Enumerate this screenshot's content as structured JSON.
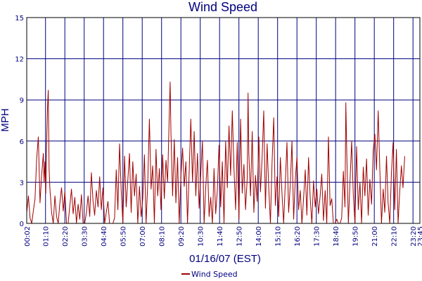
{
  "chart_data": {
    "type": "line",
    "title": "Wind Speed",
    "xlabel": "01/16/07 (EST)",
    "ylabel": "MPH",
    "ylim": [
      0,
      15
    ],
    "y_ticks": [
      "0",
      "3",
      "6",
      "9",
      "12",
      "15"
    ],
    "x_tick_labels": [
      "00:02",
      "01:10",
      "02:20",
      "03:30",
      "04:40",
      "05:50",
      "07:00",
      "08:10",
      "09:20",
      "10:30",
      "11:40",
      "12:50",
      "14:00",
      "15:10",
      "16:20",
      "17:30",
      "18:40",
      "19:50",
      "21:00",
      "22:10",
      "23:20",
      "23:45"
    ],
    "grid": true,
    "legend": "bottom-center",
    "series": [
      {
        "name": "Wind Speed",
        "color": "#a00000",
        "x_start": "00:02",
        "x_end": "23:45",
        "points": [
          [
            0.0,
            0.8
          ],
          [
            0.1,
            2.0
          ],
          [
            0.2,
            0.4
          ],
          [
            0.3,
            0.0
          ],
          [
            0.4,
            0.9
          ],
          [
            0.5,
            1.8
          ],
          [
            0.6,
            4.7
          ],
          [
            0.7,
            6.3
          ],
          [
            0.8,
            1.5
          ],
          [
            0.9,
            3.5
          ],
          [
            1.0,
            5.1
          ],
          [
            1.05,
            3.0
          ],
          [
            1.1,
            4.5
          ],
          [
            1.15,
            2.2
          ],
          [
            1.2,
            5.8
          ],
          [
            1.25,
            8.4
          ],
          [
            1.3,
            9.7
          ],
          [
            1.35,
            4.0
          ],
          [
            1.4,
            2.5
          ],
          [
            1.5,
            0.8
          ],
          [
            1.6,
            0.0
          ],
          [
            1.7,
            2.0
          ],
          [
            1.8,
            0.5
          ],
          [
            1.9,
            0.0
          ],
          [
            2.0,
            1.5
          ],
          [
            2.1,
            2.6
          ],
          [
            2.2,
            0.9
          ],
          [
            2.3,
            2.3
          ],
          [
            2.4,
            0.0
          ],
          [
            2.5,
            0.0
          ],
          [
            2.6,
            1.3
          ],
          [
            2.7,
            2.5
          ],
          [
            2.8,
            0.7
          ],
          [
            2.9,
            1.9
          ],
          [
            3.0,
            0.0
          ],
          [
            3.1,
            1.4
          ],
          [
            3.2,
            0.3
          ],
          [
            3.3,
            2.1
          ],
          [
            3.4,
            0.0
          ],
          [
            3.5,
            0.0
          ],
          [
            3.6,
            0.8
          ],
          [
            3.7,
            2.0
          ],
          [
            3.8,
            0.5
          ],
          [
            3.9,
            3.7
          ],
          [
            4.0,
            1.6
          ],
          [
            4.1,
            0.6
          ],
          [
            4.2,
            2.4
          ],
          [
            4.3,
            1.2
          ],
          [
            4.4,
            3.4
          ],
          [
            4.5,
            1.0
          ],
          [
            4.6,
            2.6
          ],
          [
            4.7,
            0.0
          ],
          [
            4.8,
            0.8
          ],
          [
            4.9,
            1.6
          ],
          [
            5.0,
            0.0
          ],
          [
            5.1,
            0.0
          ],
          [
            5.2,
            0.0
          ],
          [
            5.3,
            0.4
          ],
          [
            5.4,
            3.9
          ],
          [
            5.5,
            1.0
          ],
          [
            5.6,
            5.8
          ],
          [
            5.7,
            2.4
          ],
          [
            5.8,
            0.0
          ],
          [
            5.9,
            4.9
          ],
          [
            6.0,
            1.2
          ],
          [
            6.1,
            3.2
          ],
          [
            6.2,
            5.1
          ],
          [
            6.3,
            0.8
          ],
          [
            6.4,
            4.5
          ],
          [
            6.5,
            2.0
          ],
          [
            6.6,
            3.6
          ],
          [
            6.7,
            0.0
          ],
          [
            6.8,
            2.7
          ],
          [
            6.9,
            0.5
          ],
          [
            7.0,
            1.8
          ],
          [
            7.1,
            5.0
          ],
          [
            7.2,
            0.0
          ],
          [
            7.3,
            3.0
          ],
          [
            7.4,
            7.6
          ],
          [
            7.5,
            2.5
          ],
          [
            7.6,
            4.2
          ],
          [
            7.7,
            0.0
          ],
          [
            7.8,
            5.4
          ],
          [
            7.9,
            2.0
          ],
          [
            8.0,
            4.0
          ],
          [
            8.1,
            1.0
          ],
          [
            8.2,
            5.0
          ],
          [
            8.3,
            1.8
          ],
          [
            8.4,
            4.6
          ],
          [
            8.5,
            3.0
          ],
          [
            8.6,
            8.0
          ],
          [
            8.65,
            10.3
          ],
          [
            8.7,
            6.5
          ],
          [
            8.8,
            2.0
          ],
          [
            8.9,
            6.1
          ],
          [
            9.0,
            1.5
          ],
          [
            9.1,
            4.8
          ],
          [
            9.2,
            0.0
          ],
          [
            9.3,
            3.4
          ],
          [
            9.4,
            5.5
          ],
          [
            9.5,
            2.7
          ],
          [
            9.6,
            4.5
          ],
          [
            9.7,
            0.0
          ],
          [
            9.8,
            3.8
          ],
          [
            9.9,
            7.6
          ],
          [
            10.0,
            3.0
          ],
          [
            10.1,
            6.7
          ],
          [
            10.2,
            2.0
          ],
          [
            10.3,
            5.1
          ],
          [
            10.4,
            1.1
          ],
          [
            10.5,
            3.6
          ],
          [
            10.6,
            6.0
          ],
          [
            10.7,
            0.0
          ],
          [
            10.8,
            2.7
          ],
          [
            10.9,
            4.6
          ],
          [
            11.0,
            0.5
          ],
          [
            11.1,
            1.9
          ],
          [
            11.2,
            0.0
          ],
          [
            11.3,
            4.0
          ],
          [
            11.4,
            0.7
          ],
          [
            11.5,
            2.5
          ],
          [
            11.6,
            5.7
          ],
          [
            11.7,
            1.2
          ],
          [
            11.8,
            4.5
          ],
          [
            11.9,
            0.0
          ],
          [
            12.0,
            6.0
          ],
          [
            12.1,
            2.6
          ],
          [
            12.2,
            7.1
          ],
          [
            12.3,
            3.5
          ],
          [
            12.4,
            8.2
          ],
          [
            12.5,
            4.1
          ],
          [
            12.6,
            1.0
          ],
          [
            12.7,
            5.9
          ],
          [
            12.8,
            0.3
          ],
          [
            12.9,
            7.6
          ],
          [
            13.0,
            2.2
          ],
          [
            13.1,
            4.3
          ],
          [
            13.2,
            1.0
          ],
          [
            13.3,
            3.3
          ],
          [
            13.35,
            9.5
          ],
          [
            13.4,
            5.1
          ],
          [
            13.5,
            2.0
          ],
          [
            13.6,
            6.7
          ],
          [
            13.7,
            0.8
          ],
          [
            13.8,
            3.5
          ],
          [
            13.9,
            1.6
          ],
          [
            14.0,
            6.3
          ],
          [
            14.1,
            2.3
          ],
          [
            14.2,
            4.8
          ],
          [
            14.3,
            8.2
          ],
          [
            14.4,
            1.1
          ],
          [
            14.5,
            5.8
          ],
          [
            14.6,
            2.6
          ],
          [
            14.7,
            0.0
          ],
          [
            14.8,
            4.4
          ],
          [
            14.9,
            7.7
          ],
          [
            15.0,
            1.3
          ],
          [
            15.1,
            3.4
          ],
          [
            15.2,
            0.5
          ],
          [
            15.3,
            4.8
          ],
          [
            15.4,
            2.1
          ],
          [
            15.5,
            0.0
          ],
          [
            15.6,
            3.0
          ],
          [
            15.7,
            5.9
          ],
          [
            15.8,
            0.8
          ],
          [
            15.9,
            2.9
          ],
          [
            16.0,
            6.0
          ],
          [
            16.1,
            0.3
          ],
          [
            16.2,
            3.2
          ],
          [
            16.3,
            4.8
          ],
          [
            16.4,
            1.0
          ],
          [
            16.5,
            2.4
          ],
          [
            16.6,
            0.0
          ],
          [
            16.7,
            1.8
          ],
          [
            16.8,
            3.9
          ],
          [
            16.9,
            0.6
          ],
          [
            17.0,
            4.8
          ],
          [
            17.1,
            1.9
          ],
          [
            17.2,
            0.0
          ],
          [
            17.3,
            3.1
          ],
          [
            17.4,
            1.2
          ],
          [
            17.5,
            2.5
          ],
          [
            17.6,
            0.7
          ],
          [
            17.7,
            2.0
          ],
          [
            17.8,
            3.6
          ],
          [
            17.9,
            0.2
          ],
          [
            18.0,
            2.4
          ],
          [
            18.1,
            0.0
          ],
          [
            18.2,
            6.3
          ],
          [
            18.3,
            1.3
          ],
          [
            18.4,
            1.8
          ],
          [
            18.5,
            0.0
          ],
          [
            18.6,
            0.0
          ],
          [
            18.7,
            0.3
          ],
          [
            18.8,
            0.0
          ],
          [
            18.9,
            0.0
          ],
          [
            19.0,
            0.4
          ],
          [
            19.1,
            3.8
          ],
          [
            19.2,
            1.2
          ],
          [
            19.25,
            8.8
          ],
          [
            19.3,
            5.5
          ],
          [
            19.4,
            0.0
          ],
          [
            19.5,
            3.0
          ],
          [
            19.6,
            6.0
          ],
          [
            19.7,
            2.1
          ],
          [
            19.8,
            0.0
          ],
          [
            19.9,
            5.6
          ],
          [
            20.0,
            1.0
          ],
          [
            20.1,
            3.0
          ],
          [
            20.2,
            0.0
          ],
          [
            20.3,
            4.1
          ],
          [
            20.4,
            2.0
          ],
          [
            20.5,
            4.7
          ],
          [
            20.6,
            0.6
          ],
          [
            20.7,
            3.2
          ],
          [
            20.8,
            1.4
          ],
          [
            20.9,
            5.3
          ],
          [
            21.0,
            6.5
          ],
          [
            21.1,
            3.9
          ],
          [
            21.2,
            8.2
          ],
          [
            21.3,
            4.0
          ],
          [
            21.4,
            0.0
          ],
          [
            21.5,
            2.5
          ],
          [
            21.6,
            0.8
          ],
          [
            21.7,
            4.9
          ],
          [
            21.8,
            1.5
          ],
          [
            21.9,
            0.0
          ],
          [
            22.0,
            3.6
          ],
          [
            22.1,
            5.9
          ],
          [
            22.2,
            1.0
          ],
          [
            22.3,
            5.4
          ],
          [
            22.4,
            0.0
          ],
          [
            22.5,
            2.3
          ],
          [
            22.6,
            4.2
          ],
          [
            22.7,
            2.6
          ],
          [
            22.8,
            4.9
          ]
        ]
      }
    ]
  }
}
